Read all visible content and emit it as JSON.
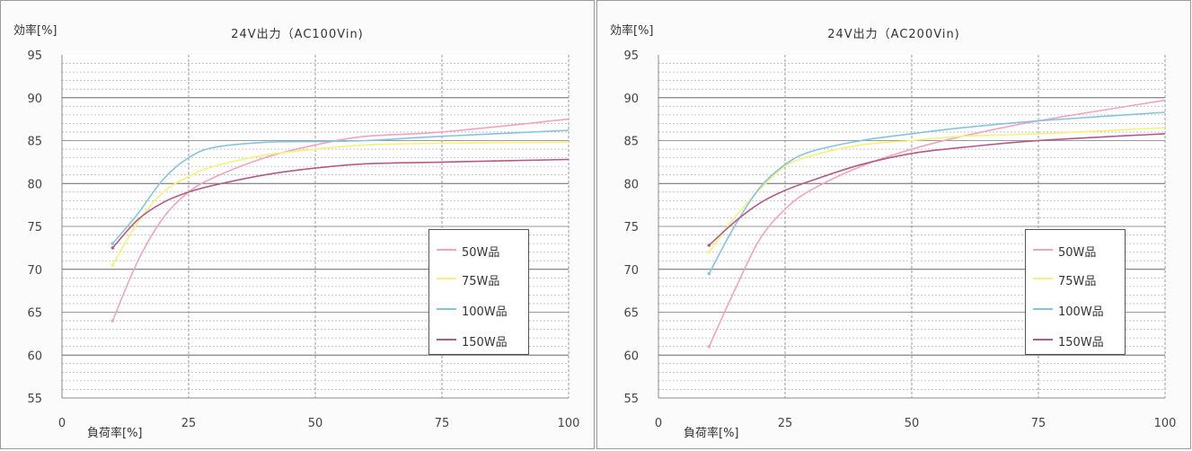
{
  "chart_data": [
    {
      "type": "line",
      "title": "24V出力（AC100Vin)",
      "ylabel": "効率[%]",
      "xlabel": "負荷率[%]",
      "xlim": [
        0,
        100
      ],
      "ylim": [
        55,
        95
      ],
      "xticks": [
        "0",
        "25",
        "50",
        "75",
        "100"
      ],
      "yticks": [
        "55",
        "60",
        "65",
        "70",
        "75",
        "80",
        "85",
        "90",
        "95"
      ],
      "grid": true,
      "legend_position": "right",
      "series": [
        {
          "name": "50W品",
          "color": "#f2a3bd",
          "x": [
            10,
            15,
            20,
            25,
            30,
            40,
            50,
            60,
            75,
            100
          ],
          "y": [
            64,
            71,
            76,
            79,
            80.7,
            83,
            84.5,
            85.5,
            86,
            87.5
          ]
        },
        {
          "name": "75W品",
          "color": "#f7f07a",
          "x": [
            10,
            15,
            20,
            25,
            30,
            40,
            50,
            60,
            75,
            100
          ],
          "y": [
            70.5,
            75.5,
            79,
            80.8,
            82,
            83.3,
            84,
            84.5,
            84.7,
            84.8
          ]
        },
        {
          "name": "100W品",
          "color": "#86c3df",
          "x": [
            10,
            15,
            20,
            25,
            30,
            40,
            50,
            60,
            75,
            100
          ],
          "y": [
            73,
            76.5,
            80.5,
            83,
            84.2,
            84.8,
            84.9,
            85,
            85.5,
            86.2
          ]
        },
        {
          "name": "150W品",
          "color": "#b45a86",
          "x": [
            10,
            15,
            20,
            25,
            30,
            40,
            50,
            60,
            75,
            100
          ],
          "y": [
            72.5,
            75.8,
            77.8,
            79,
            79.8,
            81,
            81.8,
            82.3,
            82.5,
            82.8
          ]
        }
      ]
    },
    {
      "type": "line",
      "title": "24V出力（AC200Vin)",
      "ylabel": "効率[%]",
      "xlabel": "負荷率[%]",
      "xlim": [
        0,
        100
      ],
      "ylim": [
        55,
        95
      ],
      "xticks": [
        "0",
        "25",
        "50",
        "75",
        "100"
      ],
      "yticks": [
        "55",
        "60",
        "65",
        "70",
        "75",
        "80",
        "85",
        "90",
        "95"
      ],
      "grid": true,
      "legend_position": "right",
      "series": [
        {
          "name": "50W品",
          "color": "#f2a3bd",
          "x": [
            10,
            15,
            20,
            25,
            30,
            40,
            50,
            60,
            75,
            100
          ],
          "y": [
            61,
            67.5,
            73.5,
            77,
            79.2,
            82,
            84,
            85.5,
            87.3,
            89.7
          ]
        },
        {
          "name": "75W品",
          "color": "#f7f07a",
          "x": [
            10,
            15,
            20,
            25,
            30,
            40,
            50,
            60,
            75,
            100
          ],
          "y": [
            72,
            76,
            79.3,
            82,
            83.2,
            84.5,
            85,
            85.5,
            85.8,
            86.5
          ]
        },
        {
          "name": "100W品",
          "color": "#86c3df",
          "x": [
            10,
            15,
            20,
            25,
            30,
            40,
            50,
            60,
            75,
            100
          ],
          "y": [
            69.5,
            75,
            79.5,
            82.2,
            83.7,
            85,
            85.8,
            86.5,
            87.3,
            88.3
          ]
        },
        {
          "name": "150W品",
          "color": "#b45a86",
          "x": [
            10,
            15,
            20,
            25,
            30,
            40,
            50,
            60,
            75,
            100
          ],
          "y": [
            72.8,
            75.5,
            77.7,
            79.2,
            80.3,
            82.2,
            83.5,
            84.2,
            85,
            85.8
          ]
        }
      ]
    }
  ]
}
